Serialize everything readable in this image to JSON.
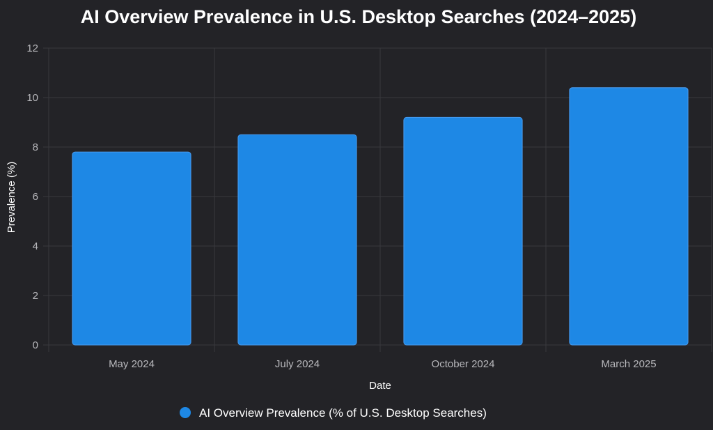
{
  "chart_data": {
    "type": "bar",
    "title": "AI Overview Prevalence in U.S. Desktop Searches (2024–2025)",
    "xlabel": "Date",
    "ylabel": "Prevalence (%)",
    "categories": [
      "May 2024",
      "July 2024",
      "October 2024",
      "March 2025"
    ],
    "series": [
      {
        "name": "AI Overview Prevalence (% of U.S. Desktop Searches)",
        "values": [
          7.8,
          8.5,
          9.2,
          10.4
        ],
        "color": "#1e88e5"
      }
    ],
    "ylim": [
      0,
      12
    ],
    "yticks": [
      0,
      2,
      4,
      6,
      8,
      10,
      12
    ],
    "grid": true,
    "legend_position": "bottom-center"
  },
  "colors": {
    "background": "#232327",
    "grid": "#38383d",
    "bar": "#1e88e5",
    "bar_border": "#4a9cf0"
  }
}
